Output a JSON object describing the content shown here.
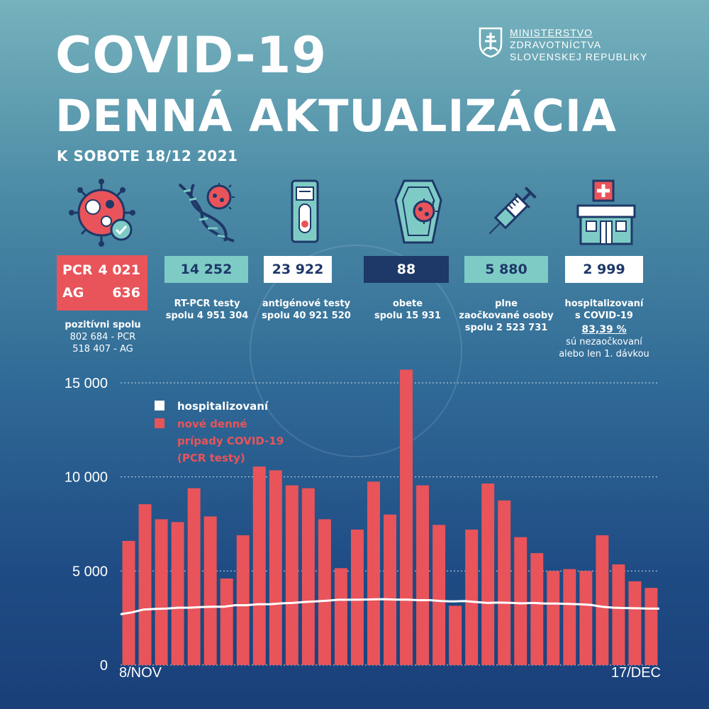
{
  "header": {
    "title_line1": "COVID-19",
    "title_line2": "DENNÁ AKTUALIZÁCIA",
    "date": "K SOBOTE 18/12 2021"
  },
  "ministry": {
    "line1": "MINISTERSTVO",
    "line2": "ZDRAVOTNÍCTVA",
    "line3": "SLOVENSKEJ REPUBLIKY",
    "icon": "coat-of-arms-icon"
  },
  "stats": {
    "positive": {
      "pcr_label": "PCR",
      "pcr_value": "4 021",
      "ag_label": "AG",
      "ag_value": "636",
      "caption": "pozitívni spolu",
      "line1": "802 684 - PCR",
      "line2": "518 407 - AG",
      "color": "#e8545a",
      "icon": "virus-check-icon"
    },
    "rtpcr": {
      "value": "14 252",
      "caption1": "RT-PCR testy",
      "caption2": "spolu  4 951 304",
      "color": "#7ecbc6",
      "icon": "dna-virus-icon"
    },
    "antigen": {
      "value": "23 922",
      "caption1": "antigénové testy",
      "caption2": "spolu 40 921 520",
      "color": "#ffffff",
      "icon": "antigen-test-icon"
    },
    "deaths": {
      "value": "88",
      "caption1": "obete",
      "caption2": "spolu  15 931",
      "color": "#1e3868",
      "icon": "coffin-virus-icon"
    },
    "vaccinated": {
      "value": "5 880",
      "caption1": "plne",
      "caption2": "zaočkované osoby",
      "caption3": "spolu 2 523 731",
      "color": "#7ecbc6",
      "icon": "syringe-icon"
    },
    "hospitalized": {
      "value": "2 999",
      "caption1": "hospitalizovaní",
      "caption2": "s COVID-19",
      "percent": "83,39 %",
      "caption3": "sú nezaočkovaní",
      "caption4": "alebo len 1. dávkou",
      "color": "#ffffff",
      "icon": "hospital-icon"
    }
  },
  "chart_data": {
    "type": "bar",
    "xlabel_start": "8/NOV",
    "xlabel_end": "17/DEC",
    "y_ticks": [
      "15 000",
      "10 000",
      "5 000",
      "0"
    ],
    "ylim": [
      0,
      15000
    ],
    "legend": {
      "line_label": "hospitalizovaní",
      "bar_label_1": "nové denné",
      "bar_label_2": "prípady COVID-19",
      "bar_label_3": "(PCR testy)"
    },
    "colors": {
      "bars": "#e8545a",
      "line": "#ffffff",
      "bar_legend": "#e8545a"
    },
    "series": [
      {
        "type": "bar",
        "values": [
          6600,
          8550,
          7750,
          7600,
          9400,
          7900,
          4600,
          6900,
          10550,
          10350,
          9550,
          9400,
          7750,
          5150,
          7200,
          9750,
          8000,
          15700,
          9550,
          7450,
          3150,
          7200,
          9650,
          8750,
          6800,
          5950,
          5000,
          5100,
          5000,
          6900,
          5350,
          4450,
          4100
        ]
      },
      {
        "type": "line",
        "values": [
          2700,
          2800,
          2950,
          2980,
          3000,
          3050,
          3050,
          3080,
          3100,
          3100,
          3180,
          3180,
          3230,
          3230,
          3280,
          3300,
          3350,
          3380,
          3420,
          3470,
          3470,
          3480,
          3490,
          3500,
          3480,
          3480,
          3450,
          3450,
          3400,
          3380,
          3400,
          3350,
          3300,
          3320,
          3310,
          3280,
          3300,
          3270,
          3270,
          3250,
          3230,
          3200,
          3100,
          3050,
          3030,
          3020,
          3000,
          3000
        ]
      }
    ]
  }
}
